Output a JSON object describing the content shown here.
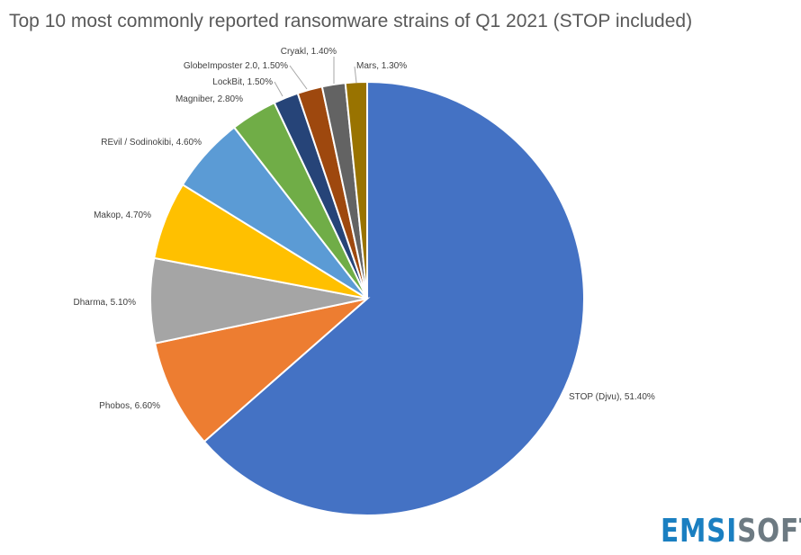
{
  "chart_data": {
    "type": "pie",
    "title": "Top 10 most commonly reported ransomware strains of Q1 2021 (STOP included)",
    "start": "12 o'clock, clockwise",
    "slices": [
      {
        "name": "STOP (Djvu)",
        "value": 51.4,
        "label": "STOP (Djvu), 51.40%",
        "color": "#4472C4"
      },
      {
        "name": "Phobos",
        "value": 6.6,
        "label": "Phobos, 6.60%",
        "color": "#ED7D31"
      },
      {
        "name": "Dharma",
        "value": 5.1,
        "label": "Dharma, 5.10%",
        "color": "#A5A5A5"
      },
      {
        "name": "Makop",
        "value": 4.7,
        "label": "Makop, 4.70%",
        "color": "#FFC000"
      },
      {
        "name": "REvil / Sodinokibi",
        "value": 4.6,
        "label": "REvil / Sodinokibi, 4.60%",
        "color": "#5B9BD5"
      },
      {
        "name": "Magniber",
        "value": 2.8,
        "label": "Magniber, 2.80%",
        "color": "#70AD47"
      },
      {
        "name": "LockBit",
        "value": 1.5,
        "label": "LockBit, 1.50%",
        "color": "#264478"
      },
      {
        "name": "GlobeImposter 2.0",
        "value": 1.5,
        "label": "GlobeImposter 2.0, 1.50%",
        "color": "#9E480E"
      },
      {
        "name": "Cryakl",
        "value": 1.4,
        "label": "Cryakl, 1.40%",
        "color": "#636363"
      },
      {
        "name": "Mars",
        "value": 1.3,
        "label": "Mars, 1.30%",
        "color": "#997300"
      }
    ]
  },
  "logo": {
    "part1": "EMSI",
    "part2": "SOFT"
  }
}
